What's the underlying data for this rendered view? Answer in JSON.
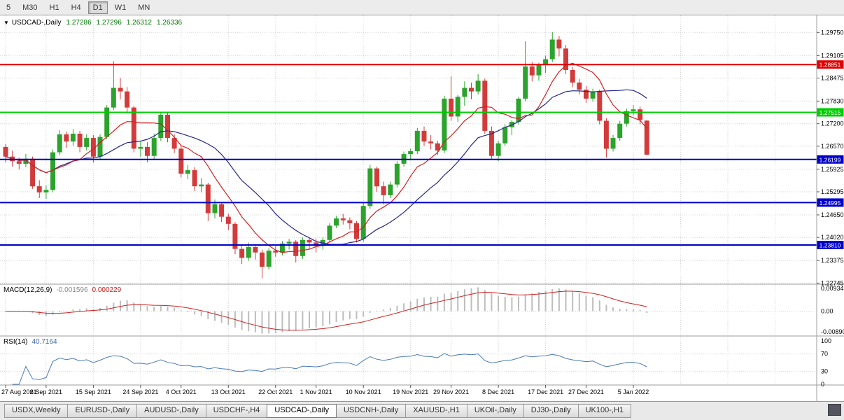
{
  "toolbar": {
    "timeframes": [
      {
        "label": "5",
        "active": false
      },
      {
        "label": "M30",
        "active": false
      },
      {
        "label": "H1",
        "active": false
      },
      {
        "label": "H4",
        "active": false
      },
      {
        "label": "D1",
        "active": true
      },
      {
        "label": "W1",
        "active": false
      },
      {
        "label": "MN",
        "active": false
      }
    ]
  },
  "chart": {
    "symbol_label": "USDCAD-,Daily",
    "ohlc": {
      "open": "1.27286",
      "high": "1.27296",
      "low": "1.26312",
      "close": "1.26336"
    }
  },
  "macd": {
    "title": "MACD(12,26,9)",
    "value_main": "-0.001596",
    "value_signal": "0.000229"
  },
  "rsi": {
    "title": "RSI(14)",
    "value": "40.7164"
  },
  "tabs": {
    "items": [
      {
        "label": "USDX,Weekly",
        "active": false
      },
      {
        "label": "EURUSD-,Daily",
        "active": false
      },
      {
        "label": "AUDUSD-,Daily",
        "active": false
      },
      {
        "label": "USDCHF-,H4",
        "active": false
      },
      {
        "label": "USDCAD-,Daily",
        "active": true
      },
      {
        "label": "USDCNH-,Daily",
        "active": false
      },
      {
        "label": "XAUUSD-,H1",
        "active": false
      },
      {
        "label": "UKOil-,Daily",
        "active": false
      },
      {
        "label": "DJ30-,Daily",
        "active": false
      },
      {
        "label": "UK100-,H1",
        "active": false
      }
    ]
  },
  "colors": {
    "bull": "#2ca32c",
    "bear": "#d23b3b",
    "ma_fast": "#d02020",
    "ma_slow": "#26268c",
    "macd_hist": "#bdbdbd",
    "macd_signal": "#cc2020",
    "rsi_line": "#4a7ab5",
    "grid": "#d4d4d4",
    "separator": "#9e9e9e",
    "axis_text": "#000000",
    "badge_text": "#ffffff"
  },
  "chart_data": {
    "type": "candlestick",
    "title": "USDCAD Daily with MACD(12,26,9) and RSI(14)",
    "price_axis": [
      1.2975,
      1.29105,
      1.28475,
      1.2783,
      1.272,
      1.2657,
      1.25925,
      1.25295,
      1.2465,
      1.2402,
      1.23375,
      1.22745
    ],
    "levels": [
      {
        "price": 1.28851,
        "label": "1.28851",
        "color": "#e00000"
      },
      {
        "price": 1.27515,
        "label": "1.27515",
        "color": "#00cc00"
      },
      {
        "price": 1.26199,
        "label": "1.26199",
        "color": "#0000cc"
      },
      {
        "price": 1.24995,
        "label": "1.24995",
        "color": "#0000cc"
      },
      {
        "price": 1.2381,
        "label": "1.23810",
        "color": "#0000cc"
      }
    ],
    "ma_periods": [
      8,
      17
    ],
    "macd_params": [
      12,
      26,
      9
    ],
    "rsi_period": 14,
    "macd_axis": [
      {
        "v": 0.009345,
        "text": "0.009345"
      },
      {
        "v": 0.0,
        "text": "0.00"
      },
      {
        "v": -0.0089,
        "text": "-0.00890"
      }
    ],
    "rsi_axis": [
      {
        "v": 100,
        "text": "100"
      },
      {
        "v": 70,
        "text": "70"
      },
      {
        "v": 30,
        "text": "30"
      },
      {
        "v": 0,
        "text": "0"
      }
    ],
    "rsi_levels": [
      70,
      30
    ],
    "date_labels": [
      {
        "i": 0,
        "text": "27 Aug 2021"
      },
      {
        "i": 6,
        "text": "6 Sep 2021"
      },
      {
        "i": 13,
        "text": "15 Sep 2021"
      },
      {
        "i": 20,
        "text": "24 Sep 2021"
      },
      {
        "i": 26,
        "text": "4 Oct 2021"
      },
      {
        "i": 33,
        "text": "13 Oct 2021"
      },
      {
        "i": 40,
        "text": "22 Oct 2021"
      },
      {
        "i": 46,
        "text": "1 Nov 2021"
      },
      {
        "i": 53,
        "text": "10 Nov 2021"
      },
      {
        "i": 60,
        "text": "19 Nov 2021"
      },
      {
        "i": 66,
        "text": "29 Nov 2021"
      },
      {
        "i": 73,
        "text": "8 Dec 2021"
      },
      {
        "i": 80,
        "text": "17 Dec 2021"
      },
      {
        "i": 86,
        "text": "27 Dec 2021"
      },
      {
        "i": 93,
        "text": "5 Jan 2022"
      }
    ],
    "candles": [
      [
        1.2655,
        1.2663,
        1.2612,
        1.2628
      ],
      [
        1.2628,
        1.2645,
        1.26,
        1.2615
      ],
      [
        1.2615,
        1.2625,
        1.2592,
        1.2608
      ],
      [
        1.2608,
        1.2635,
        1.2598,
        1.2622
      ],
      [
        1.2622,
        1.2628,
        1.2538,
        1.2545
      ],
      [
        1.2545,
        1.2562,
        1.2512,
        1.2528
      ],
      [
        1.2528,
        1.2548,
        1.251,
        1.2535
      ],
      [
        1.2535,
        1.2648,
        1.2528,
        1.264
      ],
      [
        1.264,
        1.2702,
        1.2632,
        1.269
      ],
      [
        1.269,
        1.2698,
        1.2652,
        1.267
      ],
      [
        1.267,
        1.2705,
        1.2658,
        1.2692
      ],
      [
        1.2692,
        1.27,
        1.264,
        1.2655
      ],
      [
        1.2655,
        1.269,
        1.2645,
        1.268
      ],
      [
        1.268,
        1.2688,
        1.2612,
        1.2628
      ],
      [
        1.2628,
        1.269,
        1.262,
        1.2683
      ],
      [
        1.2683,
        1.2772,
        1.2676,
        1.2765
      ],
      [
        1.2765,
        1.2895,
        1.2758,
        1.282
      ],
      [
        1.282,
        1.2848,
        1.2788,
        1.281
      ],
      [
        1.281,
        1.2822,
        1.2748,
        1.2765
      ],
      [
        1.2765,
        1.277,
        1.264,
        1.265
      ],
      [
        1.265,
        1.2672,
        1.2628,
        1.2655
      ],
      [
        1.2655,
        1.2668,
        1.2612,
        1.263
      ],
      [
        1.263,
        1.2692,
        1.2622,
        1.268
      ],
      [
        1.268,
        1.2752,
        1.2672,
        1.2745
      ],
      [
        1.2745,
        1.275,
        1.2668,
        1.268
      ],
      [
        1.268,
        1.269,
        1.2638,
        1.265
      ],
      [
        1.265,
        1.2658,
        1.257,
        1.258
      ],
      [
        1.258,
        1.2605,
        1.2565,
        1.259
      ],
      [
        1.259,
        1.2598,
        1.2532,
        1.2545
      ],
      [
        1.2545,
        1.2568,
        1.2528,
        1.255
      ],
      [
        1.255,
        1.2555,
        1.2448,
        1.247
      ],
      [
        1.247,
        1.2508,
        1.2455,
        1.2495
      ],
      [
        1.2495,
        1.2502,
        1.2445,
        1.246
      ],
      [
        1.246,
        1.2468,
        1.2422,
        1.244
      ],
      [
        1.244,
        1.2445,
        1.2355,
        1.237
      ],
      [
        1.237,
        1.2382,
        1.2328,
        1.2345
      ],
      [
        1.2345,
        1.2388,
        1.2337,
        1.2375
      ],
      [
        1.2375,
        1.2382,
        1.234,
        1.236
      ],
      [
        1.236,
        1.2368,
        1.2288,
        1.232
      ],
      [
        1.232,
        1.2372,
        1.2312,
        1.2365
      ],
      [
        1.2365,
        1.2378,
        1.2348,
        1.236
      ],
      [
        1.236,
        1.2392,
        1.2352,
        1.2385
      ],
      [
        1.2385,
        1.2398,
        1.2368,
        1.239
      ],
      [
        1.239,
        1.2395,
        1.2332,
        1.235
      ],
      [
        1.235,
        1.2402,
        1.2342,
        1.2395
      ],
      [
        1.2395,
        1.24,
        1.237,
        1.2388
      ],
      [
        1.2388,
        1.2398,
        1.236,
        1.2378
      ],
      [
        1.2378,
        1.2402,
        1.2368,
        1.2395
      ],
      [
        1.2395,
        1.2442,
        1.2388,
        1.2435
      ],
      [
        1.2435,
        1.2462,
        1.2428,
        1.2455
      ],
      [
        1.2455,
        1.2468,
        1.2438,
        1.245
      ],
      [
        1.245,
        1.2458,
        1.2425,
        1.2442
      ],
      [
        1.2442,
        1.2448,
        1.2388,
        1.2398
      ],
      [
        1.2398,
        1.2498,
        1.239,
        1.249
      ],
      [
        1.249,
        1.2605,
        1.2482,
        1.2595
      ],
      [
        1.2595,
        1.26,
        1.253,
        1.2545
      ],
      [
        1.2545,
        1.2558,
        1.2495,
        1.252
      ],
      [
        1.252,
        1.2558,
        1.2512,
        1.255
      ],
      [
        1.255,
        1.2615,
        1.2542,
        1.2608
      ],
      [
        1.2608,
        1.2642,
        1.26,
        1.2635
      ],
      [
        1.2635,
        1.265,
        1.2618,
        1.2643
      ],
      [
        1.2643,
        1.2708,
        1.2635,
        1.27
      ],
      [
        1.27,
        1.2712,
        1.2658,
        1.267
      ],
      [
        1.267,
        1.2688,
        1.2648,
        1.2665
      ],
      [
        1.2665,
        1.2672,
        1.2632,
        1.2645
      ],
      [
        1.2645,
        1.2798,
        1.2638,
        1.279
      ],
      [
        1.279,
        1.2852,
        1.2728,
        1.274
      ],
      [
        1.274,
        1.28,
        1.2725,
        1.2795
      ],
      [
        1.2795,
        1.2838,
        1.277,
        1.282
      ],
      [
        1.282,
        1.2835,
        1.2788,
        1.281
      ],
      [
        1.281,
        1.2858,
        1.2802,
        1.284
      ],
      [
        1.284,
        1.2846,
        1.2692,
        1.27
      ],
      [
        1.27,
        1.2712,
        1.2622,
        1.263
      ],
      [
        1.263,
        1.2672,
        1.2615,
        1.2665
      ],
      [
        1.2665,
        1.2718,
        1.2658,
        1.271
      ],
      [
        1.271,
        1.273,
        1.2688,
        1.2725
      ],
      [
        1.2725,
        1.2795,
        1.2718,
        1.279
      ],
      [
        1.279,
        1.295,
        1.2782,
        1.288
      ],
      [
        1.288,
        1.2892,
        1.2838,
        1.2855
      ],
      [
        1.2855,
        1.289,
        1.284,
        1.2885
      ],
      [
        1.2885,
        1.291,
        1.2862,
        1.29
      ],
      [
        1.29,
        1.2976,
        1.2892,
        1.2955
      ],
      [
        1.2955,
        1.2965,
        1.2908,
        1.293
      ],
      [
        1.293,
        1.294,
        1.2858,
        1.287
      ],
      [
        1.287,
        1.2878,
        1.2822,
        1.2835
      ],
      [
        1.2835,
        1.2845,
        1.2802,
        1.2815
      ],
      [
        1.2815,
        1.2825,
        1.2778,
        1.279
      ],
      [
        1.279,
        1.2818,
        1.2782,
        1.281
      ],
      [
        1.281,
        1.2815,
        1.2718,
        1.2728
      ],
      [
        1.2728,
        1.2735,
        1.2625,
        1.265
      ],
      [
        1.265,
        1.2688,
        1.2642,
        1.268
      ],
      [
        1.268,
        1.2728,
        1.2672,
        1.272
      ],
      [
        1.272,
        1.2762,
        1.2712,
        1.2755
      ],
      [
        1.2755,
        1.2772,
        1.2742,
        1.276
      ],
      [
        1.276,
        1.2768,
        1.2718,
        1.273
      ],
      [
        1.27286,
        1.27296,
        1.26312,
        1.26336
      ]
    ]
  }
}
